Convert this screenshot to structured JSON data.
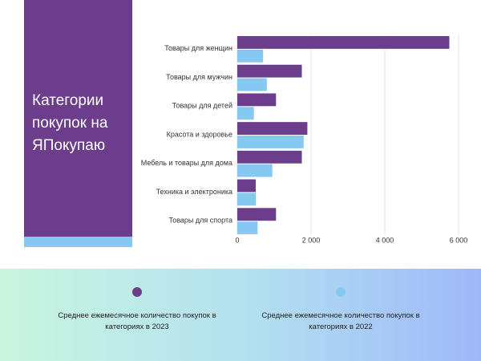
{
  "chart_data": {
    "type": "bar",
    "orientation": "horizontal",
    "title": "Категории покупок на ЯПокупаю",
    "categories": [
      "Товары для женщин",
      "Товары для мужчин",
      "Товары для детей",
      "Красота и здоровье",
      "Мебель и товары для дома",
      "Техника и электроника",
      "Товары для спорта"
    ],
    "series": [
      {
        "name": "Среднее ежемесячное количество покупок в категориях в 2023",
        "color": "#6b3d8a",
        "values": [
          5750,
          1750,
          1050,
          1900,
          1750,
          500,
          1050
        ]
      },
      {
        "name": "Среднее ежемесячное количество покупок в категориях в 2022",
        "color": "#85c9f0",
        "values": [
          700,
          800,
          450,
          1800,
          950,
          500,
          550
        ]
      }
    ],
    "xlim": [
      0,
      6000
    ],
    "xticks": [
      0,
      {
        "value": 2000,
        "label": "2 000"
      },
      {
        "value": 4000,
        "label": "4 000"
      },
      {
        "value": 6000,
        "label": "6 000"
      }
    ],
    "grid": true
  }
}
